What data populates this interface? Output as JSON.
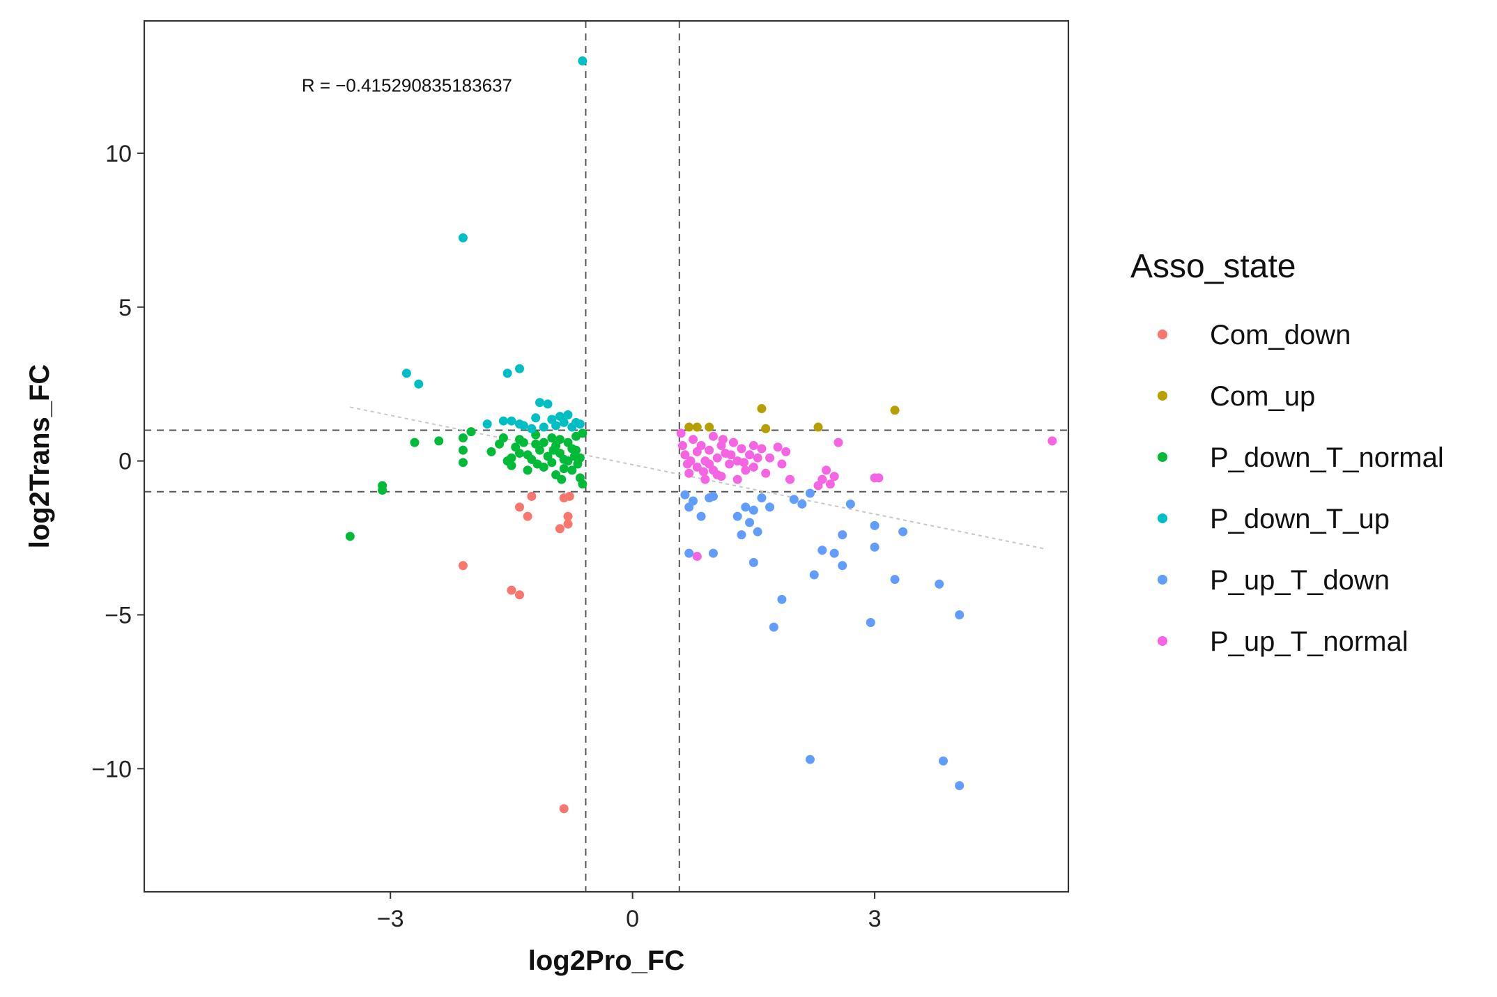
{
  "chart_data": {
    "type": "scatter",
    "xlabel": "log2Pro_FC",
    "ylabel": "log2Trans_FC",
    "xlim": [
      -6.05,
      5.4
    ],
    "ylim": [
      -14.0,
      14.3
    ],
    "xticks": [
      -3,
      0,
      3
    ],
    "xtick_labels": [
      "−3",
      "0",
      "3"
    ],
    "yticks": [
      -10,
      -5,
      0,
      5,
      10
    ],
    "ytick_labels": [
      "−10",
      "−5",
      "0",
      "5",
      "10"
    ],
    "grid": false,
    "annotation": "R = −0.415290835183637",
    "annotation_pos": [
      -4.1,
      12.0
    ],
    "thresholds": {
      "x": [
        -0.58,
        0.58
      ],
      "y": [
        -1,
        1
      ]
    },
    "trend_line": [
      [
        -3.5,
        1.75
      ],
      [
        5.1,
        -2.85
      ]
    ],
    "legend_title": "Asso_state",
    "legend_position": "right",
    "series": [
      {
        "name": "Com_down",
        "color": "#F8766D",
        "points": [
          [
            -2.1,
            -3.4
          ],
          [
            -1.5,
            -4.2
          ],
          [
            -1.4,
            -4.35
          ],
          [
            -1.4,
            -1.5
          ],
          [
            -1.3,
            -1.8
          ],
          [
            -1.25,
            -1.15
          ],
          [
            -0.9,
            -2.2
          ],
          [
            -0.8,
            -2.05
          ],
          [
            -0.85,
            -1.2
          ],
          [
            -0.78,
            -1.15
          ],
          [
            -0.85,
            -11.3
          ],
          [
            -0.8,
            -1.8
          ]
        ]
      },
      {
        "name": "Com_up",
        "color": "#B79F00",
        "points": [
          [
            0.7,
            1.1
          ],
          [
            0.8,
            1.1
          ],
          [
            0.95,
            1.1
          ],
          [
            1.6,
            1.7
          ],
          [
            1.65,
            1.05
          ],
          [
            2.3,
            1.1
          ],
          [
            3.25,
            1.65
          ]
        ]
      },
      {
        "name": "P_down_T_normal",
        "color": "#00BA38",
        "points": [
          [
            -3.5,
            -2.45
          ],
          [
            -3.1,
            -0.8
          ],
          [
            -3.1,
            -0.95
          ],
          [
            -2.7,
            0.6
          ],
          [
            -2.4,
            0.65
          ],
          [
            -2.1,
            0.75
          ],
          [
            -2.1,
            0.35
          ],
          [
            -2.1,
            -0.05
          ],
          [
            -2.0,
            0.95
          ],
          [
            -1.6,
            0.75
          ],
          [
            -1.65,
            0.55
          ],
          [
            -1.75,
            0.3
          ],
          [
            -1.5,
            0.1
          ],
          [
            -1.5,
            -0.15
          ],
          [
            -1.4,
            0.25
          ],
          [
            -1.35,
            0.6
          ],
          [
            -1.3,
            -0.3
          ],
          [
            -1.25,
            0.05
          ],
          [
            -1.2,
            0.55
          ],
          [
            -1.15,
            0.35
          ],
          [
            -1.1,
            -0.2
          ],
          [
            -1.05,
            0.15
          ],
          [
            -1.0,
            0.75
          ],
          [
            -0.95,
            0.5
          ],
          [
            -0.95,
            -0.45
          ],
          [
            -0.9,
            0.25
          ],
          [
            -0.85,
            0.05
          ],
          [
            -0.8,
            0.6
          ],
          [
            -0.75,
            -0.3
          ],
          [
            -0.7,
            0.35
          ],
          [
            -0.7,
            0.8
          ],
          [
            -0.65,
            -0.55
          ],
          [
            -0.65,
            0.1
          ],
          [
            -0.62,
            0.9
          ],
          [
            -0.62,
            -0.75
          ],
          [
            -0.68,
            -0.1
          ],
          [
            -0.75,
            0.4
          ],
          [
            -1.2,
            0.85
          ],
          [
            -1.45,
            0.45
          ],
          [
            -1.55,
            0.0
          ],
          [
            -1.1,
            0.6
          ],
          [
            -1.0,
            -0.05
          ],
          [
            -0.88,
            -0.6
          ],
          [
            -0.8,
            0.0
          ],
          [
            -0.72,
            0.15
          ],
          [
            -1.3,
            0.2
          ],
          [
            -1.18,
            -0.1
          ],
          [
            -0.98,
            0.35
          ],
          [
            -0.9,
            0.7
          ],
          [
            -0.85,
            -0.25
          ],
          [
            -1.4,
            0.7
          ]
        ]
      },
      {
        "name": "P_down_T_up",
        "color": "#00BFC4",
        "points": [
          [
            -0.62,
            13.0
          ],
          [
            -2.1,
            7.25
          ],
          [
            -2.8,
            2.85
          ],
          [
            -2.65,
            2.5
          ],
          [
            -1.55,
            2.85
          ],
          [
            -1.4,
            3.0
          ],
          [
            -1.15,
            1.9
          ],
          [
            -1.05,
            1.85
          ],
          [
            -1.6,
            1.3
          ],
          [
            -1.8,
            1.2
          ],
          [
            -1.4,
            1.2
          ],
          [
            -1.2,
            1.4
          ],
          [
            -1.1,
            1.1
          ],
          [
            -1.0,
            1.35
          ],
          [
            -0.9,
            1.45
          ],
          [
            -0.85,
            1.25
          ],
          [
            -0.75,
            1.1
          ],
          [
            -0.7,
            1.25
          ],
          [
            -0.65,
            1.2
          ],
          [
            -0.95,
            1.15
          ],
          [
            -1.35,
            1.15
          ],
          [
            -0.8,
            1.5
          ],
          [
            -1.25,
            1.05
          ],
          [
            -1.5,
            1.3
          ]
        ]
      },
      {
        "name": "P_up_T_down",
        "color": "#619CFF",
        "points": [
          [
            0.65,
            -1.1
          ],
          [
            0.7,
            -1.5
          ],
          [
            0.75,
            -1.3
          ],
          [
            0.85,
            -1.8
          ],
          [
            0.95,
            -1.2
          ],
          [
            1.0,
            -1.15
          ],
          [
            0.7,
            -3.0
          ],
          [
            1.0,
            -3.0
          ],
          [
            1.3,
            -1.8
          ],
          [
            1.35,
            -2.4
          ],
          [
            1.4,
            -1.5
          ],
          [
            1.45,
            -2.0
          ],
          [
            1.5,
            -1.6
          ],
          [
            1.5,
            -3.3
          ],
          [
            1.55,
            -2.3
          ],
          [
            1.6,
            -1.2
          ],
          [
            1.7,
            -1.5
          ],
          [
            1.85,
            -4.5
          ],
          [
            1.75,
            -5.4
          ],
          [
            2.0,
            -1.25
          ],
          [
            2.1,
            -1.4
          ],
          [
            2.2,
            -1.05
          ],
          [
            2.25,
            -3.7
          ],
          [
            2.35,
            -2.9
          ],
          [
            2.5,
            -3.0
          ],
          [
            2.6,
            -3.4
          ],
          [
            2.6,
            -2.4
          ],
          [
            2.7,
            -1.4
          ],
          [
            2.95,
            -5.25
          ],
          [
            3.0,
            -2.8
          ],
          [
            3.0,
            -2.1
          ],
          [
            3.25,
            -3.85
          ],
          [
            3.35,
            -2.3
          ],
          [
            3.8,
            -4.0
          ],
          [
            4.05,
            -5.0
          ],
          [
            2.2,
            -9.7
          ],
          [
            3.85,
            -9.75
          ],
          [
            4.05,
            -10.55
          ]
        ]
      },
      {
        "name": "P_up_T_normal",
        "color": "#F564E3",
        "points": [
          [
            0.6,
            0.9
          ],
          [
            0.62,
            0.5
          ],
          [
            0.65,
            0.2
          ],
          [
            0.68,
            -0.1
          ],
          [
            0.7,
            -0.4
          ],
          [
            0.75,
            0.7
          ],
          [
            0.8,
            0.3
          ],
          [
            0.8,
            -0.2
          ],
          [
            0.85,
            0.5
          ],
          [
            0.9,
            0.0
          ],
          [
            0.9,
            -0.6
          ],
          [
            0.95,
            0.35
          ],
          [
            1.0,
            0.8
          ],
          [
            1.0,
            -0.3
          ],
          [
            1.05,
            0.1
          ],
          [
            1.1,
            0.5
          ],
          [
            1.1,
            -0.5
          ],
          [
            1.15,
            0.25
          ],
          [
            1.2,
            -0.1
          ],
          [
            1.25,
            0.6
          ],
          [
            1.3,
            0.0
          ],
          [
            1.3,
            -0.6
          ],
          [
            1.35,
            0.4
          ],
          [
            1.4,
            -0.3
          ],
          [
            1.45,
            0.2
          ],
          [
            1.5,
            0.5
          ],
          [
            1.5,
            -0.2
          ],
          [
            1.55,
            0.1
          ],
          [
            1.6,
            0.4
          ],
          [
            1.65,
            -0.4
          ],
          [
            1.7,
            0.1
          ],
          [
            1.8,
            0.45
          ],
          [
            1.85,
            -0.1
          ],
          [
            1.9,
            0.3
          ],
          [
            1.95,
            -0.6
          ],
          [
            2.3,
            -0.8
          ],
          [
            2.35,
            -0.6
          ],
          [
            2.4,
            -0.3
          ],
          [
            2.45,
            -0.75
          ],
          [
            2.5,
            -0.5
          ],
          [
            2.55,
            0.6
          ],
          [
            3.0,
            -0.55
          ],
          [
            3.05,
            -0.55
          ],
          [
            5.2,
            0.65
          ],
          [
            0.8,
            -3.1
          ],
          [
            0.72,
            0.0
          ],
          [
            0.88,
            -0.35
          ],
          [
            1.12,
            0.7
          ],
          [
            1.22,
            0.2
          ],
          [
            1.38,
            -0.05
          ],
          [
            0.95,
            -0.1
          ],
          [
            1.05,
            -0.45
          ]
        ]
      }
    ]
  }
}
